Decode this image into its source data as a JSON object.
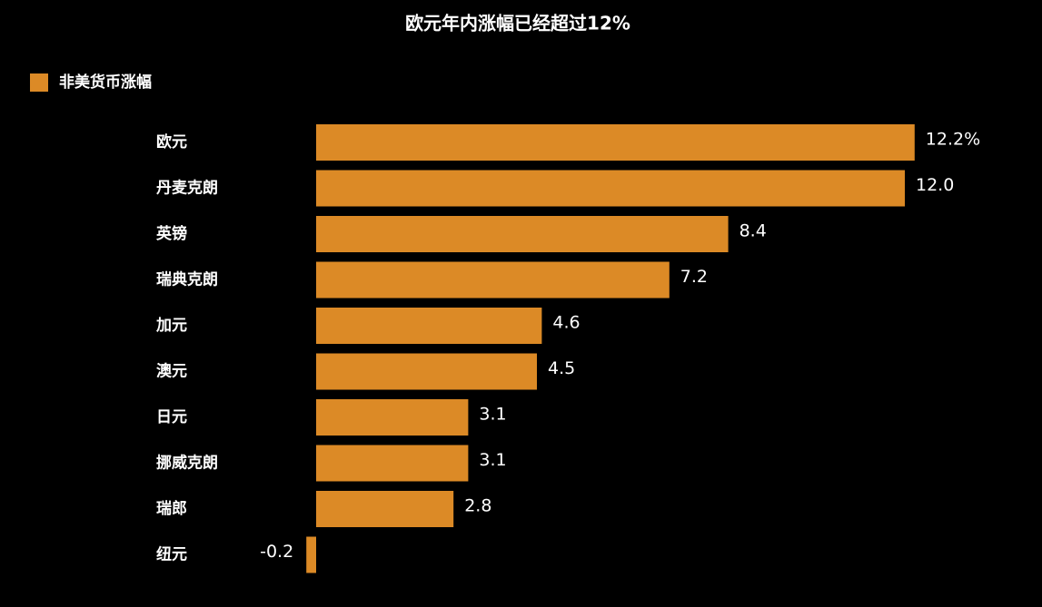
{
  "chart_data": {
    "type": "hbar",
    "title": "欧元年内涨幅已经超过12%",
    "categories": [
      "欧元",
      "丹麦克朗",
      "英镑",
      "瑞典克朗",
      "加元",
      "澳元",
      "日元",
      "挪威克朗",
      "瑞郎",
      "纽元"
    ],
    "series": [
      {
        "name": "非美货币涨幅",
        "color": "#dc8a26",
        "values": [
          12.2,
          12.0,
          8.4,
          7.2,
          4.6,
          4.5,
          3.1,
          3.1,
          2.8,
          -0.2
        ],
        "value_labels": [
          "12.2%",
          "12.0",
          "8.4",
          "7.2",
          "4.6",
          "4.5",
          "3.1",
          "3.1",
          "2.8",
          "-0.2"
        ]
      }
    ],
    "xlim": [
      -0.5,
      13.5
    ]
  }
}
